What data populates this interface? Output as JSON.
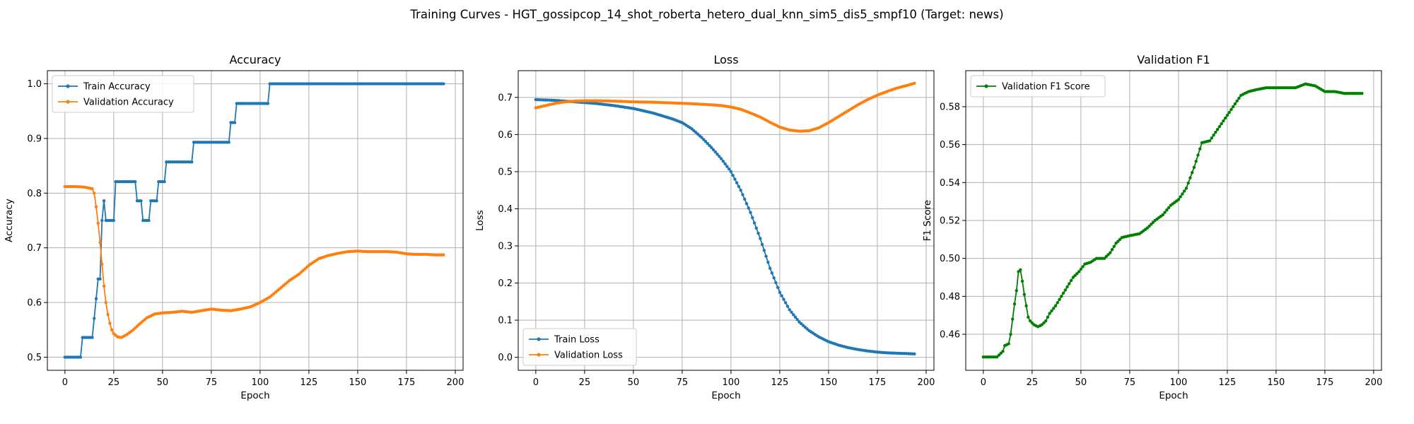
{
  "figure": {
    "suptitle": "Training Curves - HGT_gossipcop_14_shot_roberta_hetero_dual_knn_sim5_dis5_smpf10 (Target: news)"
  },
  "chart_data": [
    {
      "type": "line",
      "title": "Accuracy",
      "xlabel": "Epoch",
      "ylabel": "Accuracy",
      "xlim": [
        -9,
        204
      ],
      "ylim": [
        0.476,
        1.024
      ],
      "xticks": [
        0,
        25,
        50,
        75,
        100,
        125,
        150,
        175,
        200
      ],
      "yticks": [
        0.5,
        0.6,
        0.7,
        0.8,
        0.9,
        1.0
      ],
      "ytick_labels": [
        "0.5",
        "0.6",
        "0.7",
        "0.8",
        "0.9",
        "1.0"
      ],
      "grid": true,
      "legend": "upper left",
      "series": [
        {
          "name": "Train Accuracy",
          "color": "#1f77b4",
          "points": [
            [
              0,
              0.5
            ],
            [
              8,
              0.5
            ],
            [
              9,
              0.536
            ],
            [
              14,
              0.536
            ],
            [
              15,
              0.571
            ],
            [
              16,
              0.607
            ],
            [
              17,
              0.643
            ],
            [
              18,
              0.643
            ],
            [
              19,
              0.75
            ],
            [
              20,
              0.786
            ],
            [
              21,
              0.75
            ],
            [
              25,
              0.75
            ],
            [
              26,
              0.821
            ],
            [
              36,
              0.821
            ],
            [
              37,
              0.786
            ],
            [
              39,
              0.786
            ],
            [
              40,
              0.75
            ],
            [
              43,
              0.75
            ],
            [
              44,
              0.786
            ],
            [
              47,
              0.786
            ],
            [
              48,
              0.821
            ],
            [
              51,
              0.821
            ],
            [
              52,
              0.857
            ],
            [
              65,
              0.857
            ],
            [
              66,
              0.893
            ],
            [
              84,
              0.893
            ],
            [
              85,
              0.929
            ],
            [
              87,
              0.929
            ],
            [
              88,
              0.964
            ],
            [
              104,
              0.964
            ],
            [
              105,
              1.0
            ],
            [
              194,
              1.0
            ]
          ]
        },
        {
          "name": "Validation Accuracy",
          "color": "#ff7f0e",
          "points": [
            [
              0,
              0.812
            ],
            [
              5,
              0.812
            ],
            [
              10,
              0.811
            ],
            [
              14,
              0.808
            ],
            [
              15,
              0.8
            ],
            [
              16,
              0.775
            ],
            [
              17,
              0.745
            ],
            [
              18,
              0.71
            ],
            [
              19,
              0.67
            ],
            [
              20,
              0.63
            ],
            [
              21,
              0.6
            ],
            [
              22,
              0.578
            ],
            [
              23,
              0.562
            ],
            [
              24,
              0.55
            ],
            [
              25,
              0.543
            ],
            [
              27,
              0.537
            ],
            [
              29,
              0.536
            ],
            [
              32,
              0.542
            ],
            [
              35,
              0.55
            ],
            [
              38,
              0.56
            ],
            [
              42,
              0.572
            ],
            [
              46,
              0.579
            ],
            [
              50,
              0.581
            ],
            [
              55,
              0.582
            ],
            [
              60,
              0.584
            ],
            [
              65,
              0.582
            ],
            [
              70,
              0.585
            ],
            [
              75,
              0.588
            ],
            [
              80,
              0.586
            ],
            [
              85,
              0.585
            ],
            [
              90,
              0.588
            ],
            [
              95,
              0.592
            ],
            [
              100,
              0.6
            ],
            [
              105,
              0.61
            ],
            [
              110,
              0.625
            ],
            [
              115,
              0.64
            ],
            [
              120,
              0.652
            ],
            [
              125,
              0.668
            ],
            [
              130,
              0.68
            ],
            [
              135,
              0.686
            ],
            [
              140,
              0.69
            ],
            [
              145,
              0.693
            ],
            [
              150,
              0.694
            ],
            [
              155,
              0.693
            ],
            [
              160,
              0.693
            ],
            [
              165,
              0.693
            ],
            [
              170,
              0.692
            ],
            [
              175,
              0.689
            ],
            [
              180,
              0.688
            ],
            [
              185,
              0.688
            ],
            [
              190,
              0.687
            ],
            [
              194,
              0.687
            ]
          ]
        }
      ]
    },
    {
      "type": "line",
      "title": "Loss",
      "xlabel": "Epoch",
      "ylabel": "Loss",
      "xlim": [
        -9,
        204
      ],
      "ylim": [
        -0.035,
        0.772
      ],
      "xticks": [
        0,
        25,
        50,
        75,
        100,
        125,
        150,
        175,
        200
      ],
      "yticks": [
        0.0,
        0.1,
        0.2,
        0.3,
        0.4,
        0.5,
        0.6,
        0.7
      ],
      "ytick_labels": [
        "0.0",
        "0.1",
        "0.2",
        "0.3",
        "0.4",
        "0.5",
        "0.6",
        "0.7"
      ],
      "grid": true,
      "legend": "lower left",
      "series": [
        {
          "name": "Train Loss",
          "color": "#1f77b4",
          "points": [
            [
              0,
              0.694
            ],
            [
              10,
              0.692
            ],
            [
              20,
              0.688
            ],
            [
              30,
              0.684
            ],
            [
              40,
              0.678
            ],
            [
              50,
              0.67
            ],
            [
              60,
              0.658
            ],
            [
              70,
              0.642
            ],
            [
              75,
              0.632
            ],
            [
              80,
              0.615
            ],
            [
              85,
              0.592
            ],
            [
              90,
              0.565
            ],
            [
              95,
              0.535
            ],
            [
              100,
              0.5
            ],
            [
              105,
              0.45
            ],
            [
              110,
              0.39
            ],
            [
              115,
              0.32
            ],
            [
              120,
              0.24
            ],
            [
              125,
              0.175
            ],
            [
              130,
              0.128
            ],
            [
              135,
              0.095
            ],
            [
              140,
              0.072
            ],
            [
              145,
              0.055
            ],
            [
              150,
              0.042
            ],
            [
              155,
              0.033
            ],
            [
              160,
              0.026
            ],
            [
              165,
              0.021
            ],
            [
              170,
              0.017
            ],
            [
              175,
              0.014
            ],
            [
              180,
              0.012
            ],
            [
              185,
              0.011
            ],
            [
              190,
              0.01
            ],
            [
              194,
              0.009
            ]
          ]
        },
        {
          "name": "Validation Loss",
          "color": "#ff7f0e",
          "points": [
            [
              0,
              0.672
            ],
            [
              5,
              0.678
            ],
            [
              10,
              0.684
            ],
            [
              15,
              0.688
            ],
            [
              20,
              0.69
            ],
            [
              25,
              0.691
            ],
            [
              30,
              0.691
            ],
            [
              40,
              0.69
            ],
            [
              50,
              0.688
            ],
            [
              60,
              0.687
            ],
            [
              70,
              0.685
            ],
            [
              80,
              0.683
            ],
            [
              90,
              0.68
            ],
            [
              95,
              0.678
            ],
            [
              100,
              0.674
            ],
            [
              105,
              0.668
            ],
            [
              110,
              0.658
            ],
            [
              115,
              0.647
            ],
            [
              120,
              0.633
            ],
            [
              125,
              0.62
            ],
            [
              130,
              0.612
            ],
            [
              135,
              0.609
            ],
            [
              140,
              0.61
            ],
            [
              145,
              0.618
            ],
            [
              150,
              0.632
            ],
            [
              155,
              0.648
            ],
            [
              160,
              0.664
            ],
            [
              165,
              0.68
            ],
            [
              170,
              0.694
            ],
            [
              175,
              0.706
            ],
            [
              180,
              0.716
            ],
            [
              185,
              0.725
            ],
            [
              190,
              0.732
            ],
            [
              194,
              0.738
            ]
          ]
        }
      ]
    },
    {
      "type": "line",
      "title": "Validation F1",
      "xlabel": "Epoch",
      "ylabel": "F1 Score",
      "xlim": [
        -9,
        204
      ],
      "ylim": [
        0.441,
        0.599
      ],
      "xticks": [
        0,
        25,
        50,
        75,
        100,
        125,
        150,
        175,
        200
      ],
      "yticks": [
        0.46,
        0.48,
        0.5,
        0.52,
        0.54,
        0.56,
        0.58
      ],
      "ytick_labels": [
        "0.46",
        "0.48",
        "0.50",
        "0.52",
        "0.54",
        "0.56",
        "0.58"
      ],
      "grid": true,
      "legend": "upper left",
      "series": [
        {
          "name": "Validation F1 Score",
          "color": "#008000",
          "points": [
            [
              0,
              0.448
            ],
            [
              7,
              0.448
            ],
            [
              8,
              0.449
            ],
            [
              10,
              0.451
            ],
            [
              11,
              0.454
            ],
            [
              13,
              0.455
            ],
            [
              14,
              0.46
            ],
            [
              15,
              0.468
            ],
            [
              16,
              0.476
            ],
            [
              17,
              0.483
            ],
            [
              18,
              0.493
            ],
            [
              19,
              0.494
            ],
            [
              20,
              0.488
            ],
            [
              21,
              0.481
            ],
            [
              22,
              0.475
            ],
            [
              23,
              0.469
            ],
            [
              24,
              0.467
            ],
            [
              26,
              0.465
            ],
            [
              28,
              0.464
            ],
            [
              30,
              0.465
            ],
            [
              32,
              0.467
            ],
            [
              34,
              0.471
            ],
            [
              37,
              0.475
            ],
            [
              40,
              0.48
            ],
            [
              43,
              0.485
            ],
            [
              46,
              0.49
            ],
            [
              49,
              0.493
            ],
            [
              52,
              0.497
            ],
            [
              55,
              0.498
            ],
            [
              58,
              0.5
            ],
            [
              62,
              0.5
            ],
            [
              65,
              0.503
            ],
            [
              68,
              0.508
            ],
            [
              71,
              0.511
            ],
            [
              75,
              0.512
            ],
            [
              80,
              0.513
            ],
            [
              84,
              0.516
            ],
            [
              88,
              0.52
            ],
            [
              92,
              0.523
            ],
            [
              96,
              0.528
            ],
            [
              100,
              0.531
            ],
            [
              104,
              0.537
            ],
            [
              108,
              0.548
            ],
            [
              112,
              0.561
            ],
            [
              116,
              0.562
            ],
            [
              120,
              0.568
            ],
            [
              124,
              0.574
            ],
            [
              128,
              0.58
            ],
            [
              132,
              0.586
            ],
            [
              136,
              0.588
            ],
            [
              140,
              0.589
            ],
            [
              145,
              0.59
            ],
            [
              150,
              0.59
            ],
            [
              155,
              0.59
            ],
            [
              160,
              0.59
            ],
            [
              165,
              0.592
            ],
            [
              170,
              0.591
            ],
            [
              175,
              0.588
            ],
            [
              180,
              0.588
            ],
            [
              185,
              0.587
            ],
            [
              190,
              0.587
            ],
            [
              194,
              0.587
            ]
          ]
        }
      ]
    }
  ]
}
